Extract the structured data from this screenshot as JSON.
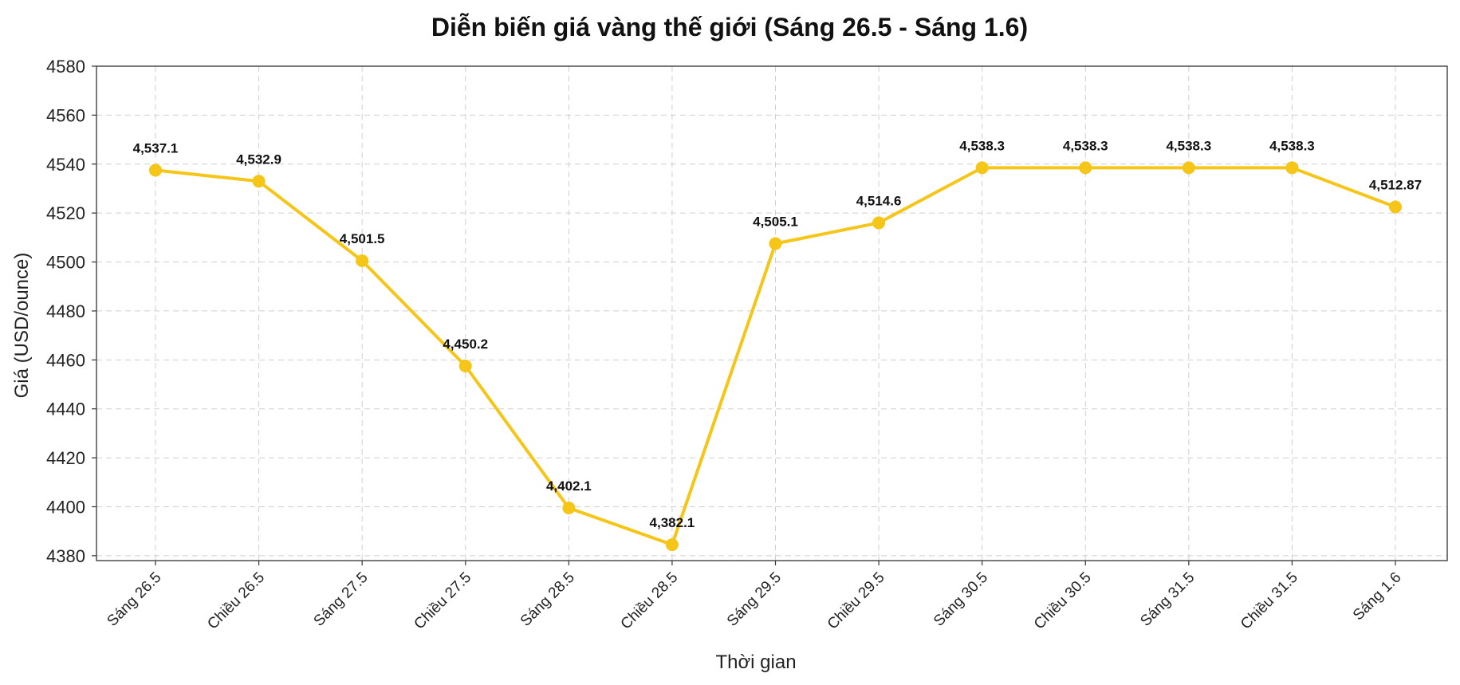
{
  "chart_data": {
    "type": "line",
    "title": "Diễn biến giá vàng thế giới (Sáng 26.5 - Sáng 1.6)",
    "xlabel": "Thời gian",
    "ylabel": "Giá (USD/ounce)",
    "categories": [
      "Sáng 26.5",
      "Chiều 26.5",
      "Sáng 27.5",
      "Chiều 27.5",
      "Sáng 28.5",
      "Chiều 28.5",
      "Sáng 29.5",
      "Chiều 29.5",
      "Sáng 30.5",
      "Chiều 30.5",
      "Sáng 31.5",
      "Chiều 31.5",
      "Sáng 1.6"
    ],
    "series": [
      {
        "values": [
          4537.1,
          4532.9,
          4501.5,
          4450.2,
          4402.1,
          4382.1,
          4505.1,
          4514.6,
          4538.3,
          4538.3,
          4538.3,
          4538.3,
          4512.87
        ],
        "point_values": [
          4537.5,
          4533.0,
          4500.5,
          4457.5,
          4399.5,
          4384.5,
          4507.5,
          4516.0,
          4538.5,
          4538.5,
          4538.5,
          4538.5,
          4522.5
        ],
        "data_labels": [
          "4,537.1",
          "4,532.9",
          "4,501.5",
          "4,450.2",
          "4,402.1",
          "4,382.1",
          "4,505.1",
          "4,514.6",
          "4,538.3",
          "4,538.3",
          "4,538.3",
          "4,538.3",
          "4,512.87"
        ],
        "color": "#F5C518"
      }
    ],
    "ylim": [
      4378,
      4580
    ],
    "yticks": [
      4380,
      4400,
      4420,
      4440,
      4460,
      4480,
      4500,
      4520,
      4540,
      4560,
      4580
    ],
    "grid": true
  }
}
